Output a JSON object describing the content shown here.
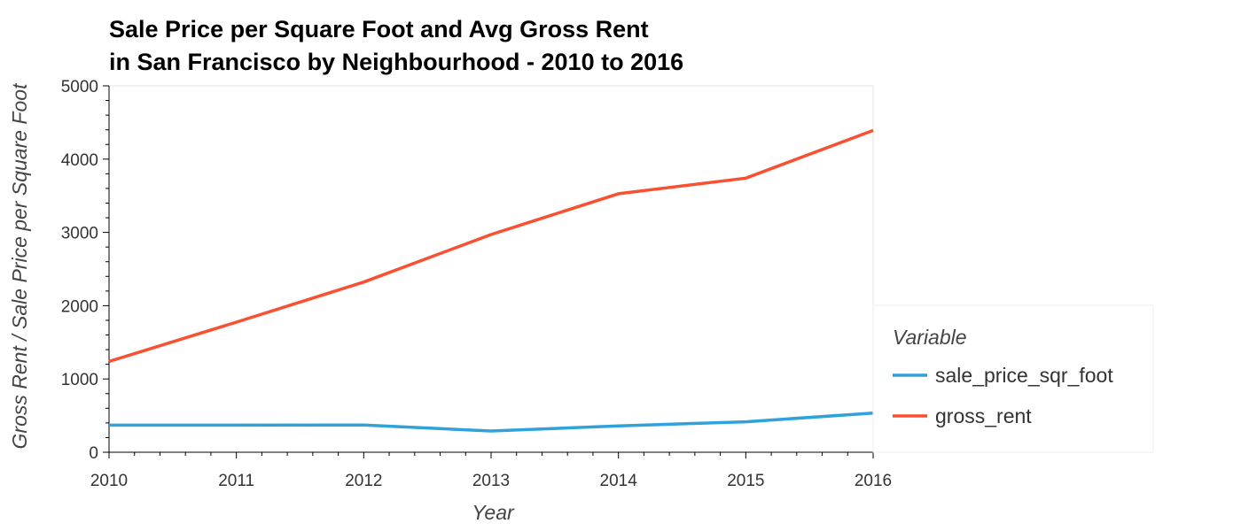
{
  "chart_data": {
    "type": "line",
    "title_lines": [
      "Sale Price per Square Foot and Avg Gross Rent",
      "in San Francisco by Neighbourhood - 2010 to 2016"
    ],
    "xlabel": "Year",
    "ylabel": "Gross Rent / Sale Price per Square Foot",
    "x": [
      2010,
      2011,
      2012,
      2013,
      2014,
      2015,
      2016
    ],
    "xlim": [
      2010,
      2016
    ],
    "ylim": [
      0,
      5000
    ],
    "xticks": [
      "2010",
      "2011",
      "2012",
      "2013",
      "2014",
      "2015",
      "2016"
    ],
    "yticks": [
      "0",
      "1000",
      "2000",
      "3000",
      "4000",
      "5000"
    ],
    "series": [
      {
        "name": "sale_price_sqr_foot",
        "color": "#30a2da",
        "values": [
          369,
          370,
          372,
          290,
          360,
          415,
          535
        ]
      },
      {
        "name": "gross_rent",
        "color": "#fc4f30",
        "values": [
          1239,
          1775,
          2323,
          2971,
          3528,
          3740,
          4391
        ]
      }
    ],
    "legend": {
      "title": "Variable",
      "placement": "right"
    },
    "grid": false
  }
}
